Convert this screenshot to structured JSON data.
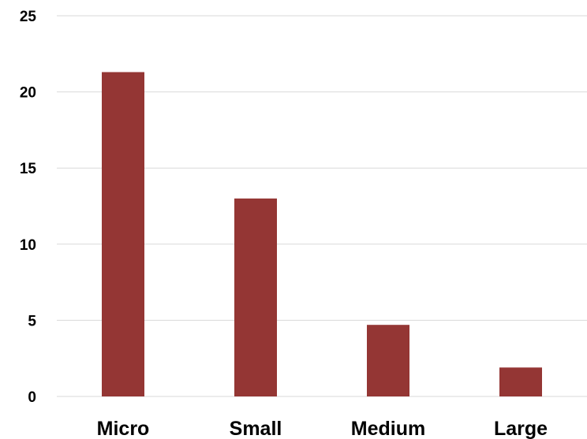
{
  "chart_data": {
    "type": "bar",
    "categories": [
      "Micro",
      "Small",
      "Medium",
      "Large"
    ],
    "values": [
      21.3,
      13.0,
      4.7,
      1.9
    ],
    "title": "",
    "xlabel": "",
    "ylabel": "",
    "ylim": [
      0,
      25
    ],
    "yticks": [
      "0",
      "5",
      "10",
      "15",
      "20",
      "25"
    ],
    "grid": true,
    "legend": "none",
    "bar_color": "#943634",
    "grid_color": "#d9d9d9"
  }
}
